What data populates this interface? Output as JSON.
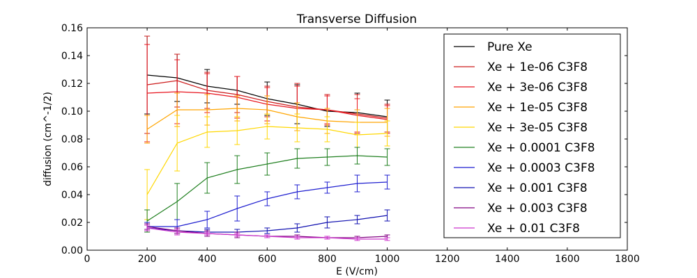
{
  "chart_data": {
    "type": "line",
    "title": "Transverse Diffusion",
    "xlabel": "E (V/cm)",
    "ylabel": "diffusion (cm^-1/2)",
    "xlim": [
      0,
      1800
    ],
    "ylim": [
      0,
      0.16
    ],
    "xticks": [
      "0",
      "200",
      "400",
      "600",
      "800",
      "1000",
      "1200",
      "1400",
      "1600",
      "1800"
    ],
    "yticks": [
      "0.00",
      "0.02",
      "0.04",
      "0.06",
      "0.08",
      "0.10",
      "0.12",
      "0.14",
      "0.16"
    ],
    "grid": false,
    "legend_position": "top-right",
    "x": [
      200,
      300,
      400,
      500,
      600,
      700,
      800,
      900,
      1000
    ],
    "series": [
      {
        "name": "Pure Xe",
        "color": "#000000",
        "values": [
          0.126,
          0.124,
          0.118,
          0.115,
          0.109,
          0.105,
          0.1,
          0.099,
          0.096
        ],
        "errors": [
          0.028,
          0.017,
          0.012,
          0.01,
          0.012,
          0.014,
          0.011,
          0.014,
          0.012
        ]
      },
      {
        "name": "Xe + 1e-06 C3F8",
        "color": "#cc1a1a",
        "values": [
          0.119,
          0.122,
          0.115,
          0.112,
          0.107,
          0.103,
          0.101,
          0.098,
          0.095
        ],
        "errors": [
          0.035,
          0.019,
          0.013,
          0.013,
          0.011,
          0.017,
          0.011,
          0.014,
          0.01
        ]
      },
      {
        "name": "Xe + 3e-06 C3F8",
        "color": "#e8141e",
        "values": [
          0.113,
          0.114,
          0.113,
          0.11,
          0.105,
          0.102,
          0.101,
          0.097,
          0.094
        ],
        "errors": [
          0.035,
          0.023,
          0.014,
          0.015,
          0.012,
          0.016,
          0.01,
          0.012,
          0.01
        ]
      },
      {
        "name": "Xe + 1e-05 C3F8",
        "color": "#ffa500",
        "values": [
          0.087,
          0.101,
          0.101,
          0.102,
          0.101,
          0.096,
          0.093,
          0.092,
          0.092
        ],
        "errors": [
          0.01,
          0.012,
          0.011,
          0.009,
          0.01,
          0.01,
          0.009,
          0.009,
          0.01
        ]
      },
      {
        "name": "Xe + 3e-05 C3F8",
        "color": "#ffd700",
        "values": [
          0.04,
          0.077,
          0.085,
          0.086,
          0.089,
          0.088,
          0.087,
          0.083,
          0.084
        ],
        "errors": [
          0.018,
          0.02,
          0.011,
          0.01,
          0.009,
          0.01,
          0.009,
          0.009,
          0.009
        ]
      },
      {
        "name": "Xe + 0.0001 C3F8",
        "color": "#1f7f1f",
        "values": [
          0.021,
          0.035,
          0.052,
          0.058,
          0.062,
          0.066,
          0.067,
          0.068,
          0.067
        ],
        "errors": [
          0.008,
          0.013,
          0.011,
          0.01,
          0.008,
          0.007,
          0.006,
          0.006,
          0.006
        ]
      },
      {
        "name": "Xe + 0.0003 C3F8",
        "color": "#1f1fd0",
        "values": [
          0.017,
          0.017,
          0.022,
          0.03,
          0.037,
          0.042,
          0.045,
          0.048,
          0.049
        ],
        "errors": [
          0.003,
          0.005,
          0.006,
          0.009,
          0.005,
          0.005,
          0.004,
          0.006,
          0.005
        ]
      },
      {
        "name": "Xe + 0.001 C3F8",
        "color": "#1010b0",
        "values": [
          0.016,
          0.014,
          0.013,
          0.013,
          0.014,
          0.016,
          0.02,
          0.022,
          0.025
        ],
        "errors": [
          0.002,
          0.002,
          0.002,
          0.002,
          0.002,
          0.003,
          0.004,
          0.003,
          0.004
        ]
      },
      {
        "name": "Xe + 0.003 C3F8",
        "color": "#800080",
        "values": [
          0.017,
          0.014,
          0.012,
          0.011,
          0.01,
          0.01,
          0.009,
          0.009,
          0.01
        ],
        "errors": [
          0.002,
          0.002,
          0.002,
          0.002,
          0.001,
          0.001,
          0.001,
          0.001,
          0.001
        ]
      },
      {
        "name": "Xe + 0.01 C3F8",
        "color": "#cc33cc",
        "values": [
          0.016,
          0.013,
          0.012,
          0.011,
          0.01,
          0.009,
          0.009,
          0.008,
          0.008
        ],
        "errors": [
          0.002,
          0.002,
          0.001,
          0.001,
          0.001,
          0.001,
          0.001,
          0.001,
          0.001
        ]
      }
    ]
  }
}
